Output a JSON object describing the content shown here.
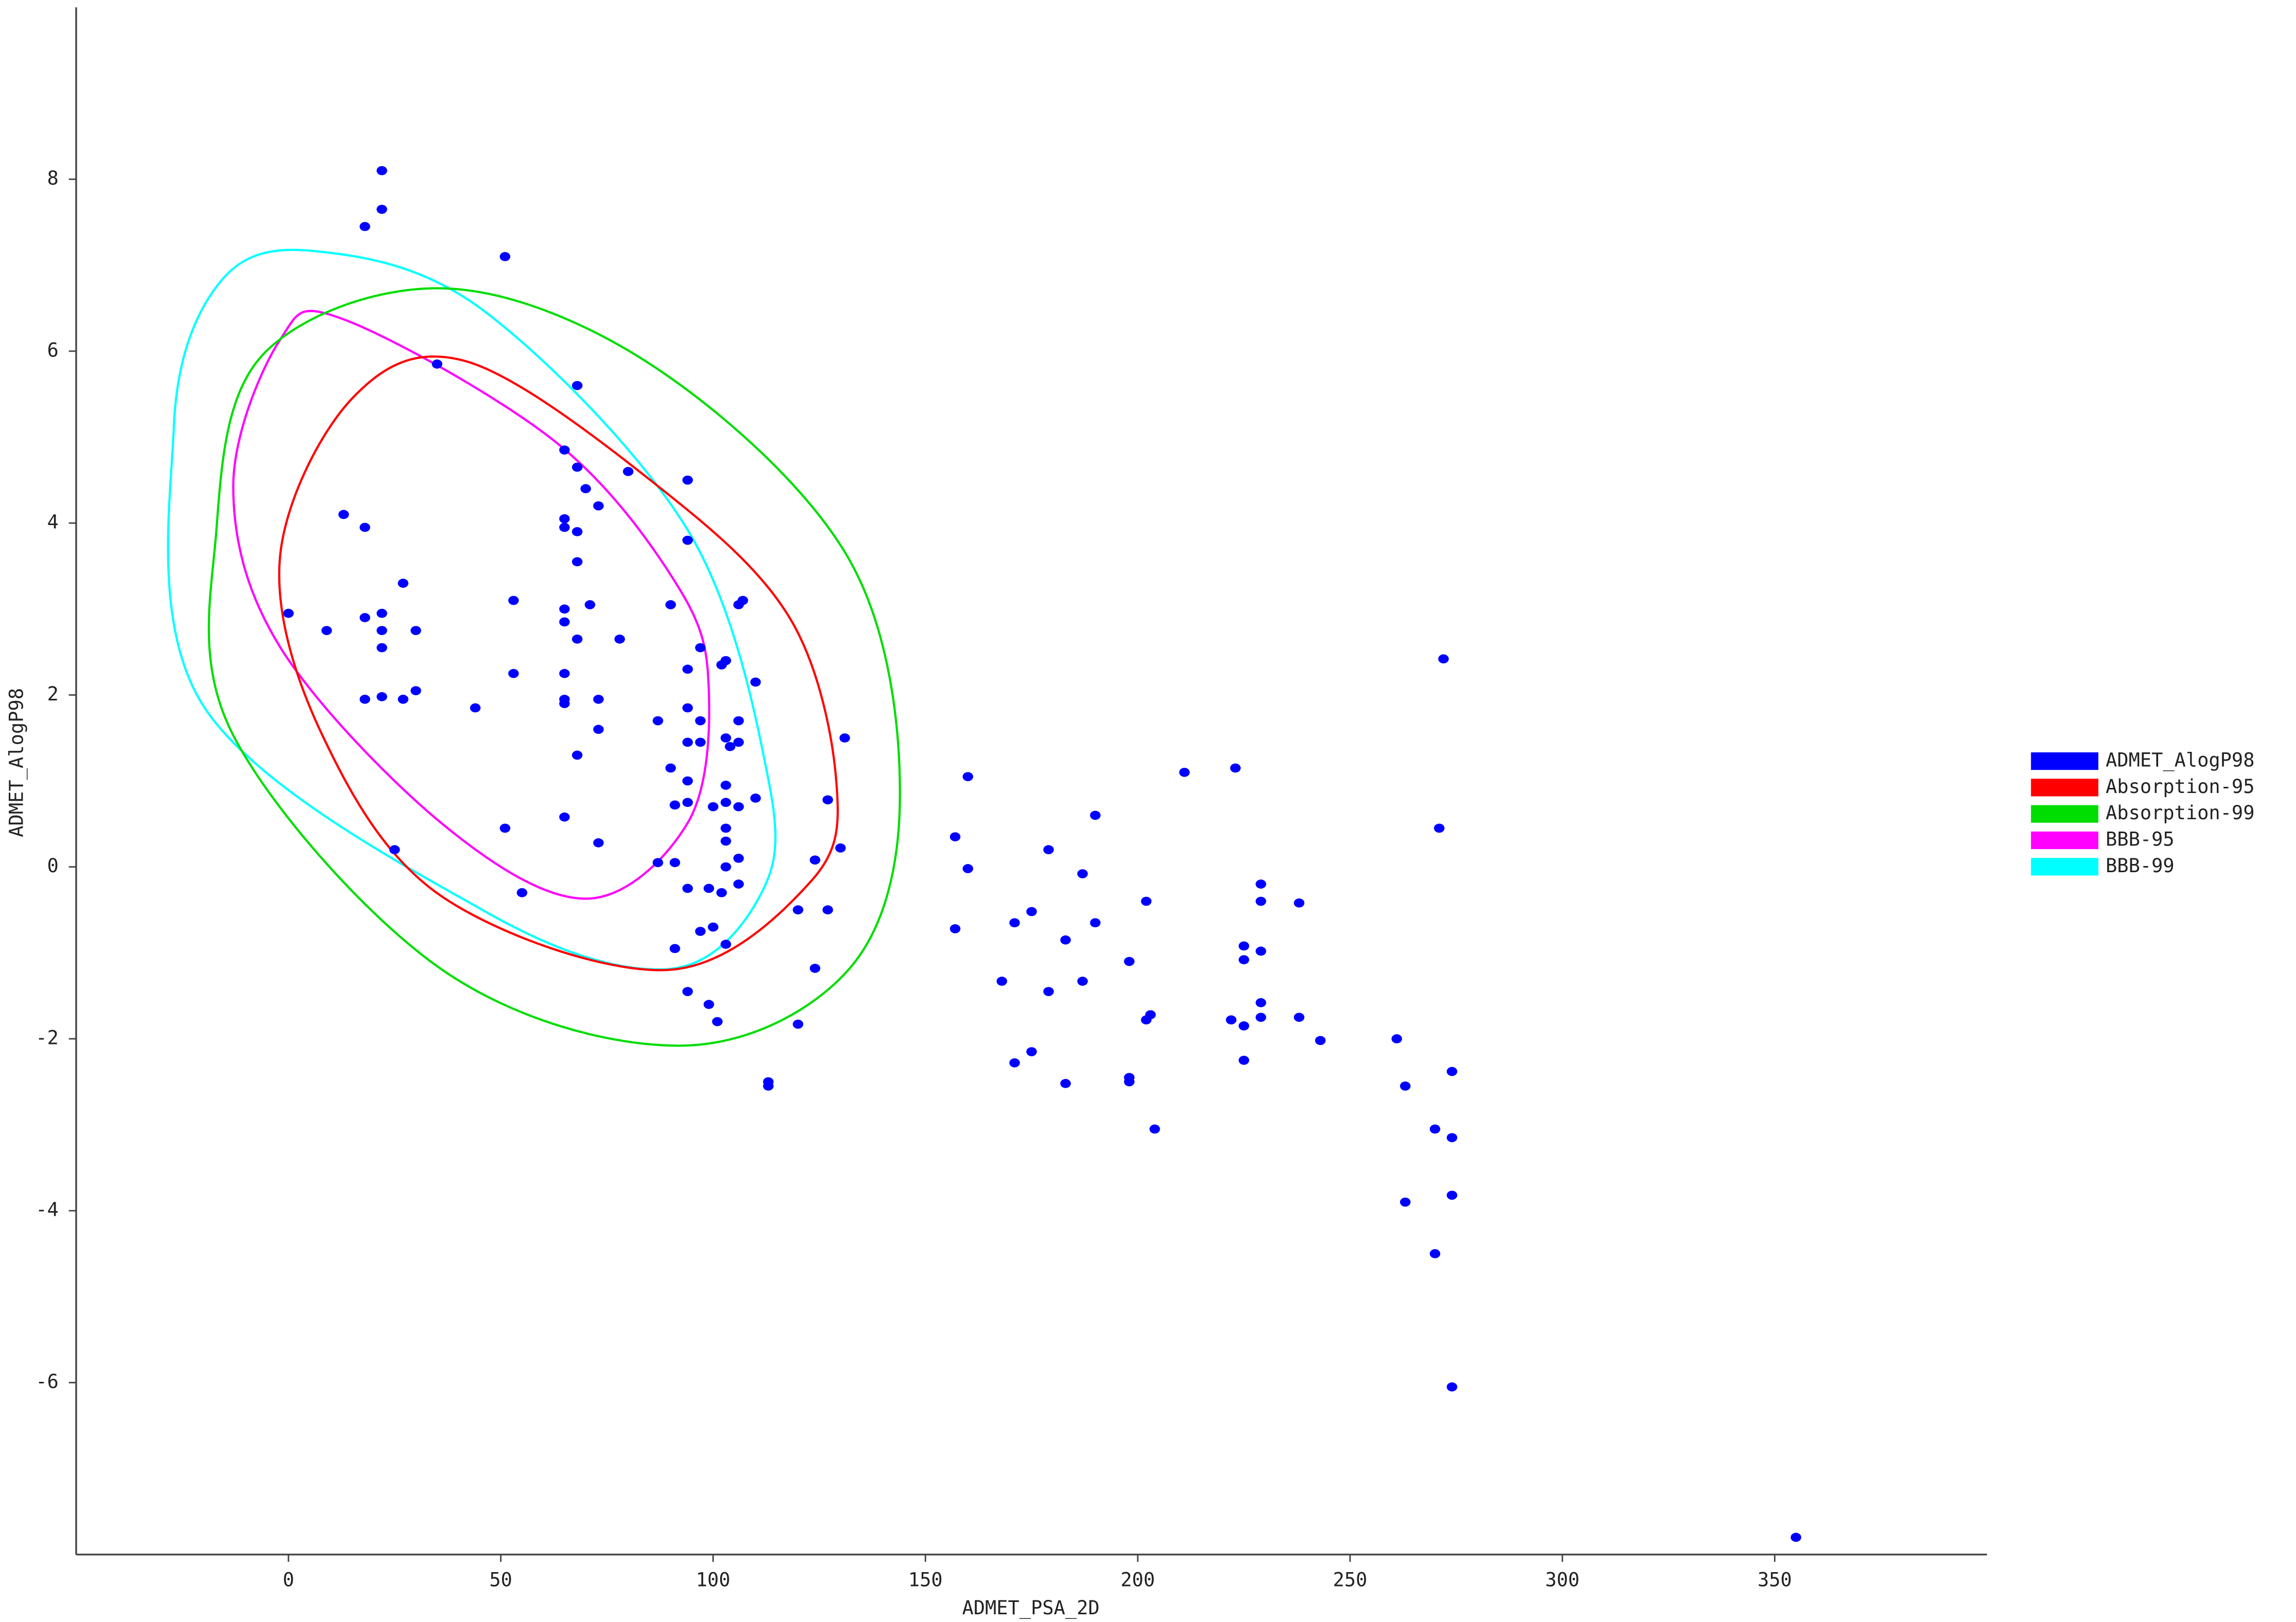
{
  "chart_data": {
    "type": "scatter",
    "x_label": "ADMET_PSA_2D",
    "y_label": "ADMET_AlogP98",
    "xlim": [
      -50,
      400
    ],
    "ylim": [
      -8,
      10
    ],
    "xticks": [
      0,
      50,
      100,
      150,
      200,
      250,
      300,
      350
    ],
    "yticks": [
      -6,
      -4,
      -2,
      0,
      2,
      4,
      6,
      8
    ],
    "grid": false,
    "legend": "right",
    "series": [
      {
        "name": "ADMET_AlogP98",
        "color": "#0000ff",
        "shape": "points",
        "x": [
          22,
          22,
          18,
          51,
          35,
          68,
          65,
          68,
          80,
          94,
          70,
          73,
          13,
          65,
          65,
          18,
          68,
          94,
          68,
          27,
          53,
          65,
          71,
          90,
          107,
          106,
          0,
          22,
          18,
          65,
          9,
          22,
          30,
          68,
          78,
          22,
          97,
          103,
          102,
          94,
          65,
          53,
          110,
          30,
          18,
          22,
          27,
          65,
          65,
          73,
          44,
          94,
          87,
          97,
          106,
          73,
          103,
          94,
          97,
          106,
          104,
          131,
          68,
          90,
          160,
          211,
          223,
          94,
          103,
          110,
          127,
          91,
          94,
          100,
          106,
          103,
          190,
          65,
          51,
          103,
          271,
          157,
          103,
          73,
          130,
          25,
          179,
          106,
          124,
          87,
          91,
          103,
          160,
          187,
          229,
          94,
          99,
          106,
          55,
          102,
          202,
          229,
          238,
          120,
          127,
          175,
          171,
          190,
          100,
          97,
          157,
          183,
          103,
          91,
          225,
          229,
          225,
          198,
          124,
          168,
          187,
          179,
          94,
          99,
          229,
          229,
          238,
          222,
          203,
          202,
          101,
          120,
          225,
          243,
          261,
          175,
          171,
          225,
          274,
          198,
          198,
          183,
          113,
          113,
          263,
          204,
          270,
          274,
          272,
          274,
          263,
          270,
          274,
          355
        ],
        "values": [
          8.1,
          7.65,
          7.45,
          7.1,
          5.85,
          5.6,
          4.85,
          4.65,
          4.6,
          4.5,
          4.4,
          4.2,
          4.1,
          4.05,
          3.95,
          3.95,
          3.9,
          3.8,
          3.55,
          3.3,
          3.1,
          3.0,
          3.05,
          3.05,
          3.1,
          3.05,
          2.95,
          2.95,
          2.9,
          2.85,
          2.75,
          2.75,
          2.75,
          2.65,
          2.65,
          2.55,
          2.55,
          2.4,
          2.35,
          2.3,
          2.25,
          2.25,
          2.15,
          2.05,
          1.95,
          1.98,
          1.95,
          1.95,
          1.9,
          1.95,
          1.85,
          1.85,
          1.7,
          1.7,
          1.7,
          1.6,
          1.5,
          1.45,
          1.45,
          1.45,
          1.4,
          1.5,
          1.3,
          1.15,
          1.05,
          1.1,
          1.15,
          1.0,
          0.95,
          0.8,
          0.78,
          0.72,
          0.75,
          0.7,
          0.7,
          0.75,
          0.6,
          0.58,
          0.45,
          0.45,
          0.45,
          0.35,
          0.3,
          0.28,
          0.22,
          0.2,
          0.2,
          0.1,
          0.08,
          0.05,
          0.05,
          0.0,
          -0.02,
          -0.08,
          -0.2,
          -0.25,
          -0.25,
          -0.2,
          -0.3,
          -0.3,
          -0.4,
          -0.4,
          -0.42,
          -0.5,
          -0.5,
          -0.52,
          -0.65,
          -0.65,
          -0.7,
          -0.75,
          -0.72,
          -0.85,
          -0.9,
          -0.95,
          -0.92,
          -0.98,
          -1.08,
          -1.1,
          -1.18,
          -1.33,
          -1.33,
          -1.45,
          -1.45,
          -1.6,
          -1.58,
          -1.75,
          -1.75,
          -1.78,
          -1.72,
          -1.78,
          -1.8,
          -1.83,
          -1.85,
          -2.02,
          -2.0,
          -2.15,
          -2.28,
          -2.25,
          -2.38,
          -2.45,
          -2.5,
          -2.52,
          -2.5,
          -2.55,
          -2.55,
          -3.05,
          -3.05,
          -3.15,
          2.42,
          -3.82,
          -3.9,
          -4.5,
          -6.05,
          -7.8
        ]
      },
      {
        "name": "Absorption-95",
        "color": "#ff0000",
        "shape": "ellipse",
        "x": [
          -2,
          15,
          42,
          87,
          118,
          129,
          123,
          89,
          36,
          8
        ],
        "values": [
          3.6,
          5.45,
          5.88,
          4.43,
          2.9,
          1.0,
          -0.17,
          -1.2,
          -0.34,
          1.53
        ]
      },
      {
        "name": "Absorption-99",
        "color": "#00dd00",
        "shape": "ellipse",
        "x": [
          -17,
          -6,
          37,
          87,
          132,
          144,
          132,
          92,
          36,
          -13
        ],
        "values": [
          3.9,
          5.96,
          6.73,
          5.79,
          3.58,
          0.85,
          -1.19,
          -2.08,
          -1.19,
          1.53
        ]
      },
      {
        "name": "BBB-95",
        "color": "#ff00ff",
        "shape": "ellipse",
        "x": [
          -13,
          -2,
          13,
          63,
          92,
          99,
          94,
          70,
          36,
          -2
        ],
        "values": [
          4.43,
          6.13,
          6.37,
          4.94,
          3.24,
          2.04,
          0.51,
          -0.37,
          0.51,
          2.56
        ]
      },
      {
        "name": "BBB-99",
        "color": "#00ffff",
        "shape": "ellipse",
        "x": [
          -27,
          -16,
          7,
          46,
          94,
          113,
          111,
          89,
          46,
          -20
        ],
        "values": [
          5.11,
          6.81,
          7.16,
          6.47,
          3.92,
          1.02,
          -0.34,
          -1.19,
          -0.51,
          1.87
        ]
      }
    ]
  }
}
